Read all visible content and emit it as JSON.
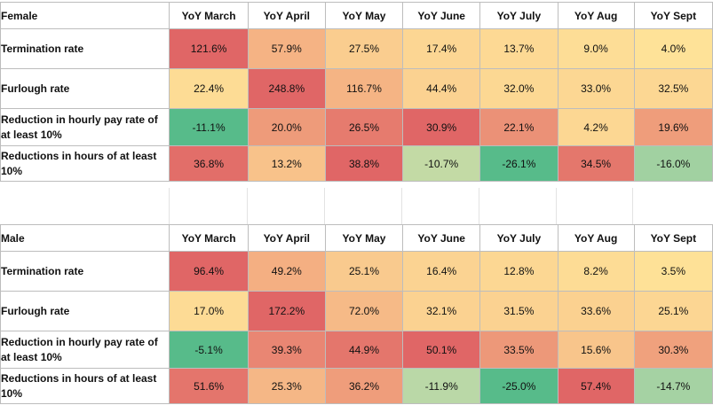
{
  "chart_data": {
    "type": "table",
    "columns": [
      "YoY March",
      "YoY April",
      "YoY May",
      "YoY June",
      "YoY July",
      "YoY Aug",
      "YoY Sept"
    ],
    "tables": [
      {
        "group": "Female",
        "rows": [
          {
            "label": "Termination rate",
            "values": [
              121.6,
              57.9,
              27.5,
              17.4,
              13.7,
              9.0,
              4.0
            ],
            "display": [
              "121.6%",
              "57.9%",
              "27.5%",
              "17.4%",
              "13.7%",
              "9.0%",
              "4.0%"
            ]
          },
          {
            "label": "Furlough rate",
            "values": [
              22.4,
              248.8,
              116.7,
              44.4,
              32.0,
              33.0,
              32.5
            ],
            "display": [
              "22.4%",
              "248.8%",
              "116.7%",
              "44.4%",
              "32.0%",
              "33.0%",
              "32.5%"
            ]
          },
          {
            "label": "Reduction in hourly pay rate of at least 10%",
            "values": [
              -11.1,
              20.0,
              26.5,
              30.9,
              22.1,
              4.2,
              19.6
            ],
            "display": [
              "-11.1%",
              "20.0%",
              "26.5%",
              "30.9%",
              "22.1%",
              "4.2%",
              "19.6%"
            ]
          },
          {
            "label": "Reductions in hours of at least 10%",
            "values": [
              36.8,
              13.2,
              38.8,
              -10.7,
              -26.1,
              34.5,
              -16.0
            ],
            "display": [
              "36.8%",
              "13.2%",
              "38.8%",
              "-10.7%",
              "-26.1%",
              "34.5%",
              "-16.0%"
            ]
          }
        ]
      },
      {
        "group": "Male",
        "rows": [
          {
            "label": "Termination rate",
            "values": [
              96.4,
              49.2,
              25.1,
              16.4,
              12.8,
              8.2,
              3.5
            ],
            "display": [
              "96.4%",
              "49.2%",
              "25.1%",
              "16.4%",
              "12.8%",
              "8.2%",
              "3.5%"
            ]
          },
          {
            "label": "Furlough rate",
            "values": [
              17.0,
              172.2,
              72.0,
              32.1,
              31.5,
              33.6,
              25.1
            ],
            "display": [
              "17.0%",
              "172.2%",
              "72.0%",
              "32.1%",
              "31.5%",
              "33.6%",
              "25.1%"
            ]
          },
          {
            "label": "Reduction in hourly pay rate of at least 10%",
            "values": [
              -5.1,
              39.3,
              44.9,
              50.1,
              33.5,
              15.6,
              30.3
            ],
            "display": [
              "-5.1%",
              "39.3%",
              "44.9%",
              "50.1%",
              "33.5%",
              "15.6%",
              "30.3%"
            ]
          },
          {
            "label": "Reductions in hours of at least 10%",
            "values": [
              51.6,
              25.3,
              36.2,
              -11.9,
              -25.0,
              57.4,
              -14.7
            ],
            "display": [
              "51.6%",
              "25.3%",
              "36.2%",
              "-11.9%",
              "-25.0%",
              "57.4%",
              "-14.7%"
            ]
          }
        ]
      }
    ]
  },
  "colors": {
    "high": "#e06666",
    "mid_high": "#f4b183",
    "mid": "#ffe599",
    "mid_low": "#b6d7a8",
    "low": "#57bb8a",
    "grid": "#bdbdbd"
  }
}
